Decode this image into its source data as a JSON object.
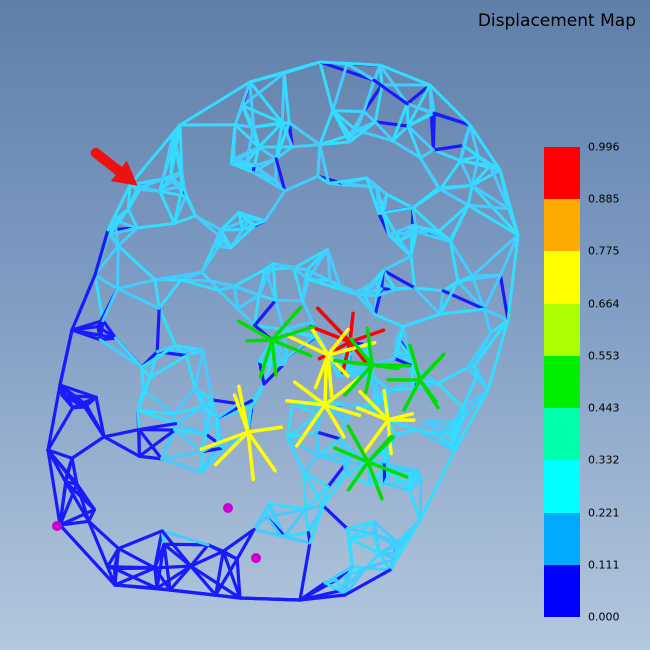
{
  "title": "Displacement Map",
  "colorbar": {
    "labels": [
      "0.996",
      "0.885",
      "0.775",
      "0.664",
      "0.553",
      "0.443",
      "0.332",
      "0.221",
      "0.111",
      "0.000"
    ],
    "colors": [
      "#ff0000",
      "#ffaa00",
      "#ffff00",
      "#aaff00",
      "#00ee00",
      "#00ffaa",
      "#00ffff",
      "#00aaff",
      "#0000ff"
    ]
  },
  "palette": {
    "low": "#1a1aff",
    "mesh": "#33ddff",
    "mid": "#44ccff",
    "hot_green": "#00dd00",
    "hot_yellow": "#ffff00",
    "hot_red": "#ff0000",
    "marker": "#cc00cc",
    "arrow": "#ee1111"
  },
  "icons": {
    "pointer": "red-arrow-icon",
    "node_marker": "purple-dot-icon"
  }
}
